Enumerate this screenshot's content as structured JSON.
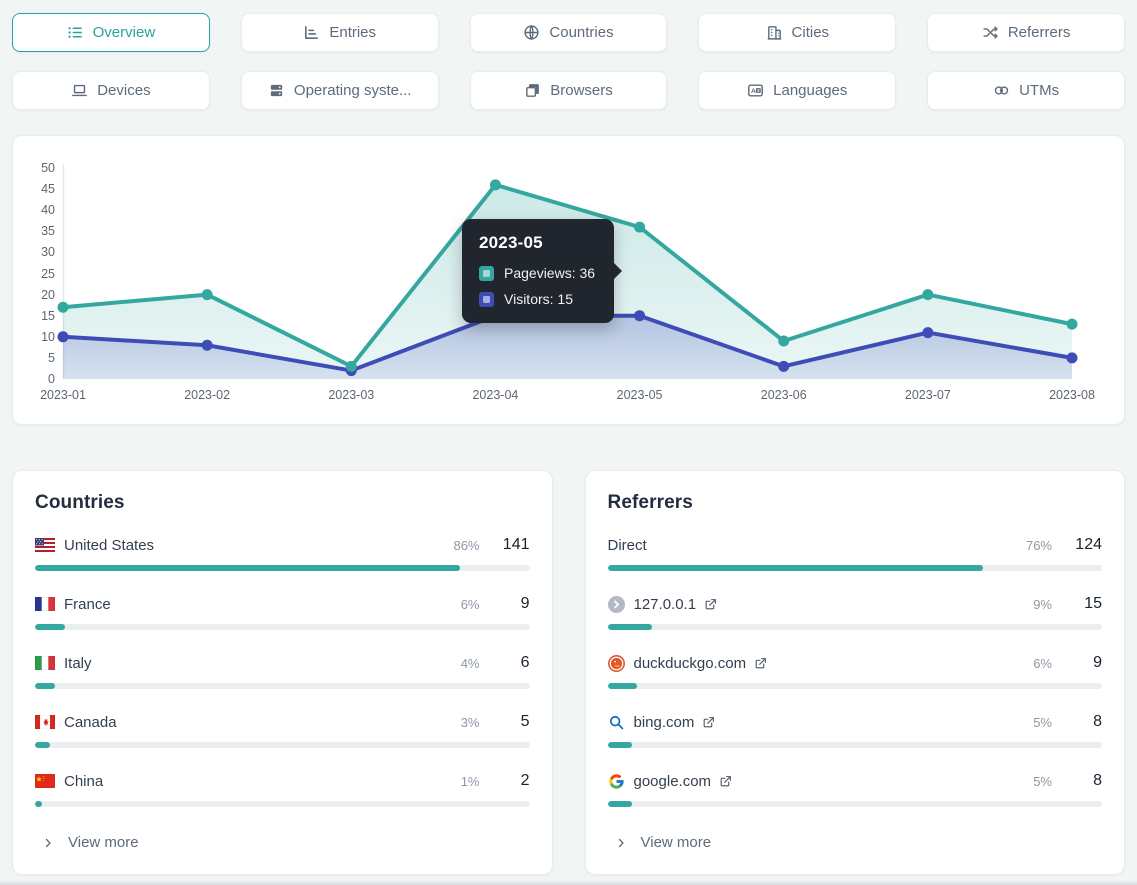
{
  "colors": {
    "accent_teal": "#34a8a0",
    "accent_indigo": "#3e4cb8",
    "tooltip_bg": "#20252e",
    "bar_track": "#ebeef1",
    "card_bg": "#ffffff",
    "page_bg": "#f1f5f4"
  },
  "tabs": [
    {
      "label": "Overview",
      "icon": "list-icon",
      "active": true
    },
    {
      "label": "Entries",
      "icon": "bar-chart-icon",
      "active": false
    },
    {
      "label": "Countries",
      "icon": "globe-icon",
      "active": false
    },
    {
      "label": "Cities",
      "icon": "building-icon",
      "active": false
    },
    {
      "label": "Referrers",
      "icon": "shuffle-icon",
      "active": false
    },
    {
      "label": "Devices",
      "icon": "laptop-icon",
      "active": false
    },
    {
      "label": "Operating syste...",
      "icon": "server-icon",
      "active": false
    },
    {
      "label": "Browsers",
      "icon": "windows-icon",
      "active": false
    },
    {
      "label": "Languages",
      "icon": "translate-icon",
      "active": false
    },
    {
      "label": "UTMs",
      "icon": "link-icon",
      "active": false
    }
  ],
  "chart_data": {
    "type": "area",
    "x": [
      "2023-01",
      "2023-02",
      "2023-03",
      "2023-04",
      "2023-05",
      "2023-06",
      "2023-07",
      "2023-08"
    ],
    "series": [
      {
        "name": "Pageviews",
        "color": "#34a8a0",
        "values": [
          17,
          20,
          3,
          46,
          36,
          9,
          20,
          13
        ]
      },
      {
        "name": "Visitors",
        "color": "#3e4cb8",
        "values": [
          10,
          8,
          2,
          15,
          15,
          3,
          11,
          5
        ]
      }
    ],
    "ylim": [
      0,
      50
    ],
    "ytick_step": 5,
    "grid": false,
    "legend": "none"
  },
  "tooltip": {
    "title": "2023-05",
    "rows": [
      {
        "label": "Pageviews: 36",
        "color": "#34a8a0"
      },
      {
        "label": "Visitors: 15",
        "color": "#3e4cb8"
      }
    ]
  },
  "countries_card": {
    "title": "Countries",
    "view_more_label": "View more",
    "view_more_icon": "chevron-right-icon",
    "rows": [
      {
        "flag": "us-flag",
        "name": "United States",
        "percent": "86%",
        "count": "141",
        "bar_pct": 86
      },
      {
        "flag": "fr-flag",
        "name": "France",
        "percent": "6%",
        "count": "9",
        "bar_pct": 6
      },
      {
        "flag": "it-flag",
        "name": "Italy",
        "percent": "4%",
        "count": "6",
        "bar_pct": 4
      },
      {
        "flag": "ca-flag",
        "name": "Canada",
        "percent": "3%",
        "count": "5",
        "bar_pct": 3
      },
      {
        "flag": "cn-flag",
        "name": "China",
        "percent": "1%",
        "count": "2",
        "bar_pct": 1.5
      }
    ]
  },
  "referrers_card": {
    "title": "Referrers",
    "view_more_label": "View more",
    "view_more_icon": "chevron-right-icon",
    "external_icon": "external-link-icon",
    "rows": [
      {
        "favicon": "none",
        "name": "Direct",
        "external": false,
        "percent": "76%",
        "count": "124",
        "bar_pct": 76
      },
      {
        "favicon": "default-favicon",
        "name": "127.0.0.1",
        "external": true,
        "percent": "9%",
        "count": "15",
        "bar_pct": 9
      },
      {
        "favicon": "duckduckgo-favicon",
        "name": "duckduckgo.com",
        "external": true,
        "percent": "6%",
        "count": "9",
        "bar_pct": 6
      },
      {
        "favicon": "bing-favicon",
        "name": "bing.com",
        "external": true,
        "percent": "5%",
        "count": "8",
        "bar_pct": 5
      },
      {
        "favicon": "google-favicon",
        "name": "google.com",
        "external": true,
        "percent": "5%",
        "count": "8",
        "bar_pct": 5
      }
    ]
  }
}
